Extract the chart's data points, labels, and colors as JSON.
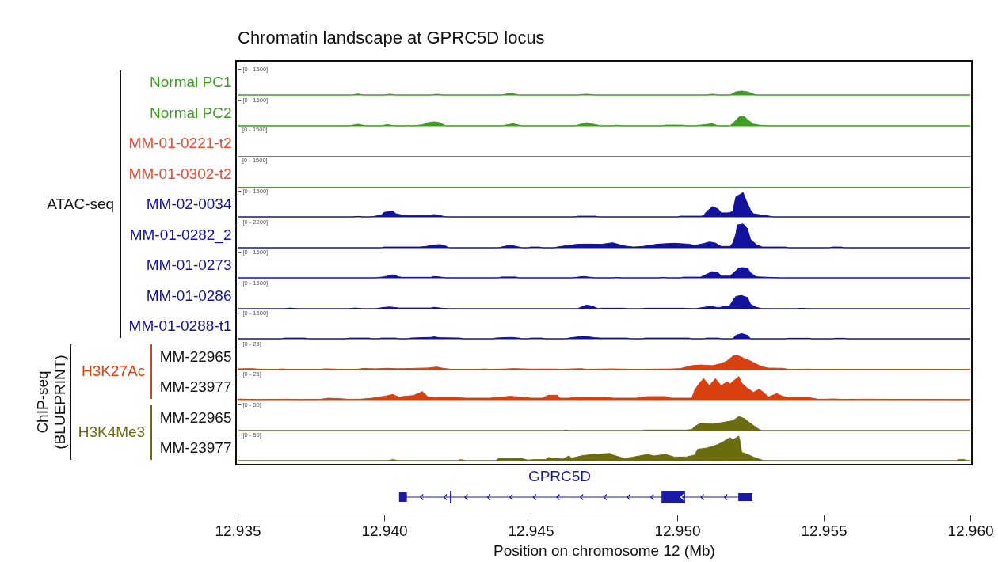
{
  "chart_data": [
    {
      "type": "area",
      "title": "Chromatin landscape at GPRC5D locus",
      "ylabel": "Normal PC1",
      "annotations": [
        "ATAC-seq"
      ],
      "color": "#3f9b22",
      "xlim": [
        12.935,
        12.96
      ],
      "ylim": [
        0,
        1500
      ],
      "yticks": [
        {
          "value": 1500,
          "label": "[0 - 1500]"
        }
      ],
      "tick_labels": "y",
      "x": [
        12.935,
        12.9389,
        12.9391,
        12.9393,
        12.94,
        12.9402,
        12.9404,
        12.9416,
        12.9418,
        12.942,
        12.944,
        12.9443,
        12.9446,
        12.9466,
        12.9469,
        12.9472,
        12.951,
        12.9512,
        12.9514,
        12.9518,
        12.952,
        12.9522,
        12.9524,
        12.9527,
        12.96
      ],
      "values": [
        0,
        0,
        60,
        0,
        0,
        50,
        0,
        0,
        50,
        0,
        0,
        100,
        0,
        0,
        50,
        0,
        0,
        50,
        0,
        0,
        180,
        230,
        180,
        0,
        0
      ]
    },
    {
      "type": "area",
      "ylabel": "Normal PC2",
      "color": "#3f9b22",
      "xlim": [
        12.935,
        12.96
      ],
      "ylim": [
        0,
        1500
      ],
      "yticks": [
        {
          "value": 1500,
          "label": "[0 - 1500]"
        }
      ],
      "tick_labels": "y",
      "x": [
        12.935,
        12.9388,
        12.9391,
        12.9394,
        12.9399,
        12.9401,
        12.9404,
        12.94075,
        12.9408,
        12.94088,
        12.941,
        12.9413,
        12.9415,
        12.9417,
        12.9419,
        12.9421,
        12.944,
        12.9444,
        12.9447,
        12.9465,
        12.9469,
        12.9474,
        12.9478,
        12.9479,
        12.9481,
        12.9495,
        12.9496,
        12.9502,
        12.9503,
        12.9506,
        12.9512,
        12.9514,
        12.9518,
        12.952,
        12.9521,
        12.9522,
        12.9523,
        12.9524,
        12.9526,
        12.9528,
        12.9531,
        12.96
      ],
      "values": [
        0,
        0,
        90,
        0,
        0,
        70,
        0,
        0,
        30,
        0,
        0,
        60,
        180,
        230,
        180,
        0,
        0,
        120,
        0,
        0,
        180,
        0,
        0,
        40,
        0,
        0,
        40,
        40,
        0,
        0,
        120,
        0,
        0,
        300,
        500,
        550,
        520,
        350,
        100,
        40,
        0,
        0
      ]
    },
    {
      "type": "other",
      "ylabel": "MM-01-0221-t2",
      "annotations": [
        "[0 - 1500]"
      ],
      "color": "#ea4b33"
    },
    {
      "type": "other",
      "ylabel": "MM-01-0302-t2",
      "annotations": [
        "[0 - 1500]"
      ],
      "color": "#ea4b33"
    },
    {
      "type": "area",
      "ylabel": "MM-02-0034",
      "color": "#12129e",
      "xlim": [
        12.935,
        12.96
      ],
      "ylim": [
        0,
        1500
      ],
      "yticks": [
        {
          "value": 1500,
          "label": "[0 - 1500]"
        }
      ],
      "tick_labels": "y",
      "x": [
        12.935,
        12.9389,
        12.9391,
        12.9393,
        12.93955,
        12.9399,
        12.94,
        12.9403,
        12.9404,
        12.9407,
        12.9411,
        12.9416,
        12.9417,
        12.942,
        12.9421,
        12.9465,
        12.9466,
        12.9472,
        12.9473,
        12.95,
        12.9501,
        12.9508,
        12.9509,
        12.951,
        12.9512,
        12.9514,
        12.9515,
        12.9517,
        12.9518,
        12.9519,
        12.952,
        12.9522,
        12.95225,
        12.9523,
        12.9525,
        12.9526,
        12.953,
        12.9533,
        12.96
      ],
      "values": [
        0,
        0,
        30,
        0,
        0,
        100,
        260,
        330,
        180,
        80,
        80,
        80,
        140,
        40,
        0,
        0,
        40,
        40,
        0,
        0,
        40,
        40,
        60,
        300,
        590,
        450,
        230,
        230,
        250,
        320,
        1150,
        1350,
        1400,
        1150,
        400,
        180,
        80,
        0,
        0
      ]
    },
    {
      "type": "area",
      "ylabel": "MM-01-0282_2",
      "color": "#12129e",
      "xlim": [
        12.935,
        12.96
      ],
      "ylim": [
        0,
        2200
      ],
      "yticks": [
        {
          "value": 2200,
          "label": "[0 - 2200]"
        }
      ],
      "tick_labels": "y",
      "x": [
        12.935,
        12.9399,
        12.94,
        12.9412,
        12.9414,
        12.9417,
        12.9419,
        12.9421,
        12.9422,
        12.9439,
        12.944,
        12.9443,
        12.9446,
        12.9447,
        12.9449,
        12.945,
        12.9453,
        12.9454,
        12.9458,
        12.9459,
        12.9463,
        12.9466,
        12.947,
        12.9474,
        12.9478,
        12.9482,
        12.9485,
        12.9488,
        12.9493,
        12.9499,
        12.9504,
        12.9506,
        12.9509,
        12.9511,
        12.9513,
        12.9515,
        12.9518,
        12.9519,
        12.952,
        12.95205,
        12.95225,
        12.9524,
        12.9525,
        12.9527,
        12.9529,
        12.9537,
        12.9538,
        12.9552,
        12.9553,
        12.9556,
        12.9557,
        12.96
      ],
      "values": [
        0,
        0,
        60,
        60,
        100,
        230,
        270,
        150,
        0,
        0,
        60,
        220,
        60,
        0,
        0,
        60,
        60,
        0,
        0,
        60,
        200,
        300,
        310,
        290,
        420,
        150,
        60,
        100,
        300,
        380,
        300,
        200,
        350,
        490,
        400,
        110,
        110,
        400,
        1150,
        1930,
        2010,
        1600,
        710,
        270,
        60,
        60,
        0,
        0,
        60,
        60,
        0,
        0
      ]
    },
    {
      "type": "area",
      "ylabel": "MM-01-0273",
      "color": "#12129e",
      "xlim": [
        12.935,
        12.96
      ],
      "ylim": [
        0,
        1500
      ],
      "yticks": [
        {
          "value": 1500,
          "label": "[0 - 1500]"
        }
      ],
      "tick_labels": "y",
      "x": [
        12.935,
        12.9397,
        12.94,
        12.9403,
        12.9405,
        12.9406,
        12.9416,
        12.9417,
        12.942,
        12.9421,
        12.9439,
        12.944,
        12.9445,
        12.9446,
        12.9464,
        12.9468,
        12.9472,
        12.9478,
        12.9479,
        12.9481,
        12.9494,
        12.9495,
        12.9497,
        12.9501,
        12.9502,
        12.9508,
        12.951,
        12.9512,
        12.9514,
        12.9515,
        12.9518,
        12.952,
        12.9521,
        12.9522,
        12.9524,
        12.9525,
        12.9527,
        12.9535,
        12.96
      ],
      "values": [
        0,
        0,
        60,
        180,
        60,
        30,
        30,
        80,
        30,
        0,
        0,
        50,
        50,
        0,
        0,
        80,
        0,
        0,
        30,
        0,
        0,
        30,
        0,
        0,
        40,
        40,
        200,
        360,
        300,
        100,
        100,
        400,
        560,
        590,
        560,
        300,
        60,
        0,
        0
      ]
    },
    {
      "type": "area",
      "ylabel": "MM-01-0286",
      "color": "#12129e",
      "xlim": [
        12.935,
        12.96
      ],
      "ylim": [
        0,
        1500
      ],
      "yticks": [
        {
          "value": 1500,
          "label": "[0 - 1500]"
        }
      ],
      "tick_labels": "y",
      "x": [
        12.935,
        12.9366,
        12.9368,
        12.937,
        12.9388,
        12.939,
        12.9393,
        12.9397,
        12.94,
        12.9402,
        12.9405,
        12.9416,
        12.9417,
        12.9419,
        12.9422,
        12.9466,
        12.9468,
        12.9469,
        12.9471,
        12.9473,
        12.9474,
        12.9482,
        12.9483,
        12.9488,
        12.9489,
        12.9502,
        12.9505,
        12.9506,
        12.951,
        12.9511,
        12.9514,
        12.9518,
        12.9519,
        12.952,
        12.9522,
        12.9524,
        12.9525,
        12.9527,
        12.9529,
        12.9541,
        12.9542,
        12.9545,
        12.96
      ],
      "values": [
        0,
        0,
        40,
        0,
        0,
        40,
        0,
        0,
        80,
        100,
        40,
        40,
        80,
        40,
        0,
        0,
        150,
        210,
        150,
        0,
        30,
        30,
        0,
        0,
        30,
        30,
        0,
        0,
        100,
        150,
        60,
        180,
        480,
        710,
        760,
        640,
        260,
        80,
        0,
        0,
        30,
        0,
        0
      ]
    },
    {
      "type": "area",
      "ylabel": "MM-01-0288-t1",
      "color": "#12129e",
      "xlim": [
        12.935,
        12.96
      ],
      "ylim": [
        0,
        1500
      ],
      "yticks": [
        {
          "value": 1500,
          "label": "[0 - 1500]"
        }
      ],
      "tick_labels": "y",
      "x": [
        12.935,
        12.9365,
        12.9366,
        12.9373,
        12.9374,
        12.9387,
        12.9388,
        12.9395,
        12.9396,
        12.9398,
        12.9399,
        12.9404,
        12.9405,
        12.9408,
        12.9409,
        12.9416,
        12.9417,
        12.9419,
        12.9426,
        12.9427,
        12.9437,
        12.9438,
        12.9443,
        12.9446,
        12.9447,
        12.9449,
        12.945,
        12.9454,
        12.9455,
        12.9462,
        12.9463,
        12.9468,
        12.9472,
        12.9474,
        12.9483,
        12.9484,
        12.9488,
        12.9489,
        12.9504,
        12.9505,
        12.9509,
        12.951,
        12.9514,
        12.9515,
        12.9519,
        12.952,
        12.9522,
        12.9524,
        12.9525,
        12.9537,
        12.9538,
        12.9545,
        12.9546,
        12.9553,
        12.9554,
        12.9557,
        12.9558,
        12.96
      ],
      "values": [
        0,
        0,
        40,
        40,
        0,
        0,
        40,
        40,
        0,
        0,
        40,
        40,
        0,
        0,
        40,
        80,
        110,
        60,
        40,
        0,
        0,
        40,
        80,
        40,
        0,
        0,
        40,
        40,
        0,
        0,
        40,
        150,
        60,
        40,
        40,
        0,
        0,
        40,
        40,
        0,
        0,
        40,
        40,
        0,
        0,
        200,
        300,
        200,
        0,
        0,
        30,
        30,
        0,
        0,
        30,
        30,
        0,
        0
      ]
    },
    {
      "type": "area",
      "ylabel": "MM-22965",
      "annotations": [
        "ChIP-seq (BLUEPRINT)",
        "H3K27Ac"
      ],
      "color": "#d9400f",
      "xlim": [
        12.935,
        12.96
      ],
      "ylim": [
        0,
        25
      ],
      "yticks": [
        {
          "value": 25,
          "label": "[0 - 25]"
        }
      ],
      "tick_labels": "y",
      "x": [
        12.935,
        12.9355,
        12.9357,
        12.9363,
        12.9365,
        12.9367,
        12.9378,
        12.938,
        12.9383,
        12.9385,
        12.9391,
        12.9393,
        12.9397,
        12.9401,
        12.9405,
        12.941,
        12.9415,
        12.9418,
        12.942,
        12.9423,
        12.9432,
        12.9434,
        12.9436,
        12.9441,
        12.9444,
        12.9447,
        12.945,
        12.9457,
        12.9461,
        12.9467,
        12.9469,
        12.9478,
        12.9482,
        12.9485,
        12.9492,
        12.9497,
        12.9501,
        12.9505,
        12.9508,
        12.9512,
        12.9515,
        12.9517,
        12.9519,
        12.952,
        12.9522,
        12.9523,
        12.9525,
        12.9527,
        12.9529,
        12.9531,
        12.9536,
        12.9538,
        12.9545,
        12.9548,
        12.9555,
        12.9565,
        12.9585,
        12.96
      ],
      "values": [
        0.8,
        1,
        0.5,
        0.3,
        0.7,
        0.3,
        0.3,
        0.8,
        0.6,
        0.3,
        0.4,
        1.2,
        0.8,
        1.3,
        0.9,
        1.2,
        1.6,
        2.5,
        1.3,
        0.3,
        0.3,
        0.7,
        0.3,
        0.6,
        1,
        0.8,
        0.5,
        0.6,
        0.4,
        1,
        0.4,
        0.7,
        0.5,
        0.3,
        0.5,
        0.6,
        1,
        3.8,
        4.5,
        3.8,
        5.8,
        8.3,
        12.9,
        13.9,
        12.1,
        10.4,
        8.3,
        5.3,
        2.8,
        1.5,
        1.3,
        0.3,
        0.5,
        0.3,
        0.4,
        0.3,
        0.4,
        0.2
      ]
    },
    {
      "type": "area",
      "ylabel": "MM-23977",
      "color": "#d9400f",
      "xlim": [
        12.935,
        12.96
      ],
      "ylim": [
        0,
        25
      ],
      "yticks": [
        {
          "value": 25,
          "label": "[0 - 25]"
        }
      ],
      "tick_labels": "y",
      "x": [
        12.935,
        12.9352,
        12.9358,
        12.9367,
        12.937,
        12.9378,
        12.9381,
        12.9385,
        12.9388,
        12.9392,
        12.9396,
        12.94,
        12.9403,
        12.9405,
        12.9407,
        12.941,
        12.9413,
        12.9415,
        12.9418,
        12.9424,
        12.9428,
        12.9436,
        12.944,
        12.9443,
        12.9447,
        12.945,
        12.9454,
        12.9456,
        12.9459,
        12.946,
        12.9463,
        12.9466,
        12.9473,
        12.9476,
        12.9478,
        12.9486,
        12.949,
        12.9496,
        12.9498,
        12.9505,
        12.9506,
        12.9508,
        12.9509,
        12.9511,
        12.9513,
        12.9515,
        12.9517,
        12.9518,
        12.9521,
        12.9522,
        12.9524,
        12.9526,
        12.9528,
        12.953,
        12.9531,
        12.9534,
        12.9536,
        12.9538,
        12.9545,
        12.9548,
        12.955,
        12.9554,
        12.9556,
        12.9565,
        12.9575,
        12.96
      ],
      "values": [
        0.7,
        0.5,
        0.2,
        0.5,
        0.2,
        0.3,
        1.5,
        1,
        0.4,
        0.5,
        1.5,
        3.3,
        5,
        2.5,
        3.3,
        4,
        7.8,
        2.5,
        2,
        2,
        1.5,
        1.5,
        2.5,
        3.3,
        2.5,
        1.5,
        1.5,
        4.3,
        4.3,
        1.5,
        1.5,
        2.5,
        2.5,
        2.5,
        1.5,
        1.5,
        3,
        3,
        1.5,
        1.5,
        9.6,
        17.2,
        20.2,
        13.4,
        20.2,
        13.4,
        17.2,
        15.2,
        22.2,
        15.9,
        10.9,
        7.1,
        10.1,
        5.8,
        2.5,
        5.8,
        3.3,
        2,
        2,
        0.5,
        0.5,
        0.7,
        0.3,
        0.5,
        0.3,
        0.2
      ]
    },
    {
      "type": "area",
      "ylabel": "MM-22965",
      "annotations": [
        "H3K4Me3"
      ],
      "color": "#6b6b10",
      "xlim": [
        12.935,
        12.96
      ],
      "ylim": [
        0,
        50
      ],
      "yticks": [
        {
          "value": 50,
          "label": "[0 - 50]"
        }
      ],
      "tick_labels": "y",
      "x": [
        12.935,
        12.9461,
        12.9462,
        12.9463,
        12.9488,
        12.9489,
        12.9501,
        12.9503,
        12.9505,
        12.9506,
        12.9508,
        12.9512,
        12.9515,
        12.9519,
        12.9521,
        12.9523,
        12.9524,
        12.9526,
        12.9528,
        12.9529,
        12.96
      ],
      "values": [
        0,
        0,
        1,
        0,
        0,
        1,
        1,
        1,
        2,
        8,
        14,
        13,
        15,
        19,
        27,
        23,
        18,
        10,
        2,
        0,
        0
      ]
    },
    {
      "type": "area",
      "ylabel": "MM-23977",
      "color": "#6b6b10",
      "xlim": [
        12.935,
        12.96
      ],
      "ylim": [
        0,
        50
      ],
      "yticks": [
        {
          "value": 50,
          "label": "[0 - 50]"
        }
      ],
      "xticks": [
        12.935,
        {
          "value": 12.94,
          "label": "12.940"
        },
        12.945,
        {
          "value": 12.95,
          "label": "12.950"
        },
        12.955,
        {
          "value": 12.96,
          "label": "12.960"
        }
      ],
      "xlabel": "Position on chromosome 12 (Mb)",
      "x": [
        12.935,
        12.9401,
        12.9403,
        12.9405,
        12.9425,
        12.9426,
        12.9428,
        12.9438,
        12.9439,
        12.9447,
        12.9449,
        12.9451,
        12.9455,
        12.9456,
        12.9461,
        12.9463,
        12.9464,
        12.9468,
        12.9472,
        12.9477,
        12.9478,
        12.9482,
        12.9485,
        12.949,
        12.9492,
        12.9496,
        12.9499,
        12.9503,
        12.9506,
        12.9507,
        12.951,
        12.9513,
        12.9515,
        12.9518,
        12.9519,
        12.9521,
        12.95215,
        12.9522,
        12.9524,
        12.9526,
        12.9529,
        12.953,
        12.9595,
        12.9596,
        12.9598,
        12.9599,
        12.96
      ],
      "values": [
        0,
        0,
        2,
        0,
        0,
        2,
        0,
        0,
        4,
        4,
        1,
        2,
        2,
        6,
        3,
        9,
        5,
        10,
        12,
        14,
        11,
        4,
        7,
        12,
        9,
        12,
        7,
        7,
        11,
        22,
        24,
        29,
        34,
        44,
        40,
        47,
        36,
        16,
        12,
        7,
        1,
        0,
        0,
        2,
        2,
        0,
        0
      ]
    },
    {
      "type": "other",
      "title": "GPRC5D",
      "color": "#1a1aa6"
    }
  ]
}
